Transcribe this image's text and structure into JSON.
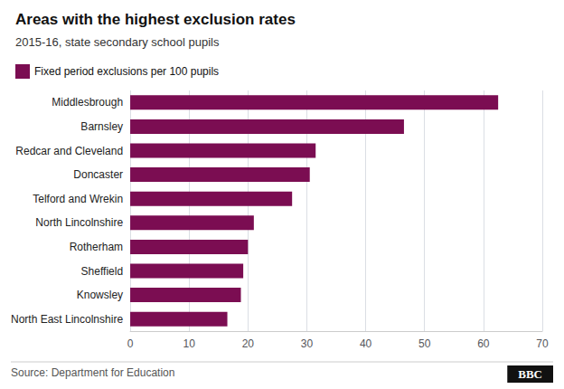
{
  "chart_data": {
    "type": "bar",
    "orientation": "horizontal",
    "title": "Areas with the highest exclusion rates",
    "subtitle": "2015-16, state secondary school pupils",
    "categories": [
      "Middlesbrough",
      "Barnsley",
      "Redcar and Cleveland",
      "Doncaster",
      "Telford and Wrekin",
      "North Lincolnshire",
      "Rotherham",
      "Sheffield",
      "Knowsley",
      "North East Lincolnshire"
    ],
    "series": [
      {
        "name": "Fixed period exclusions per 100 pupils",
        "color": "#7B0D52",
        "values": [
          62.5,
          46.5,
          31.5,
          30.5,
          27.5,
          21.0,
          20.0,
          19.2,
          18.8,
          16.5
        ]
      }
    ],
    "xlim": [
      0,
      70
    ],
    "xticks": [
      0,
      10,
      20,
      30,
      40,
      50,
      60,
      70
    ],
    "grid": true,
    "legend": "upper left",
    "annotations": [
      "Source: Department for Education",
      "BBC"
    ]
  }
}
